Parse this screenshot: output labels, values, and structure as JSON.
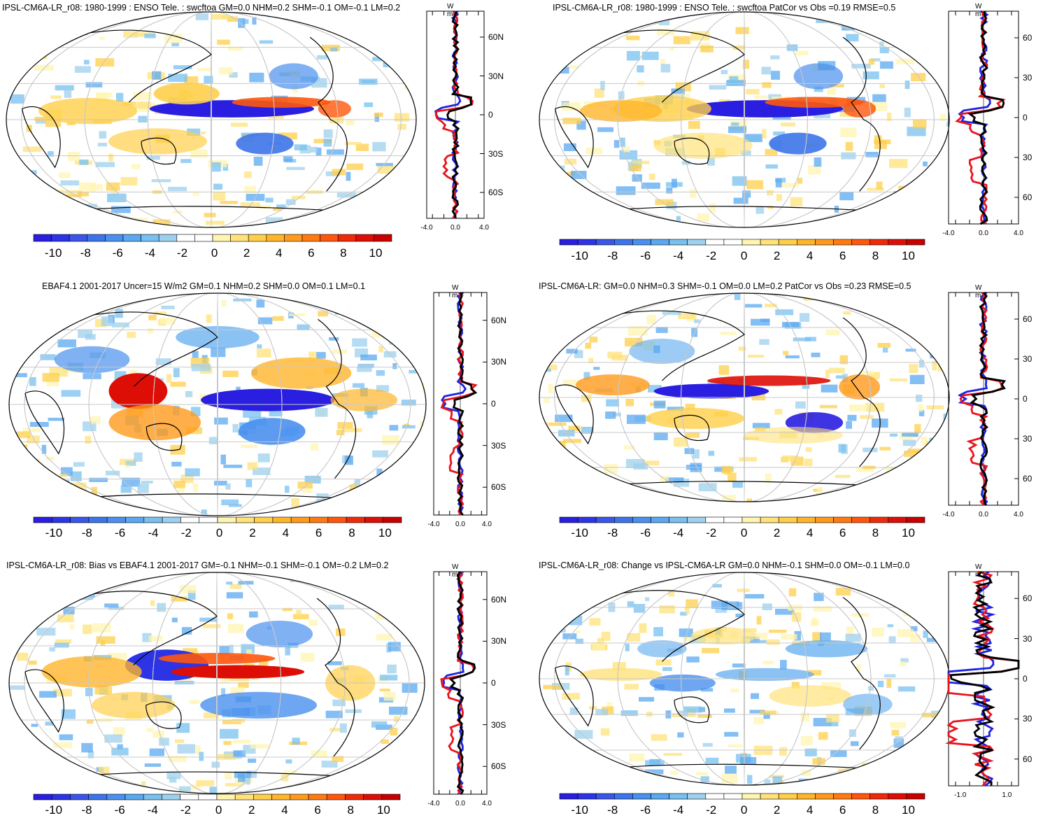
{
  "panels": [
    {
      "title": "IPSL-CM6A-LR_r08: 1980-1999 : ENSO Tele. : swcftoa GM=0.0 NHM=0.2 SHM=-0.1 OM=-0.1 LM=0.2",
      "lat_labels": [
        "60N",
        "30N",
        "0",
        "30S",
        "60S"
      ],
      "x_labels": [
        "-4.0",
        "0.0",
        "4.0"
      ],
      "zonal_xrange": [
        -4,
        4
      ]
    },
    {
      "title": "IPSL-CM6A-LR_r08: 1980-1999 : ENSO Tele. : swcftoa PatCor vs Obs =0.19 RMSE=0.5",
      "lat_labels": [
        "60",
        "30",
        "0",
        "30",
        "60"
      ],
      "x_labels": [
        "-4.0",
        "0.0",
        "4.0"
      ],
      "zonal_xrange": [
        -4,
        4
      ]
    },
    {
      "title": "EBAF4.1 2001-2017 Uncer=15 W/m2 GM=0.1 NHM=0.2 SHM=0.0 OM=0.1 LM=0.1",
      "lat_labels": [
        "60N",
        "30N",
        "0",
        "30S",
        "60S"
      ],
      "x_labels": [
        "-4.0",
        "0.0",
        "4.0"
      ],
      "zonal_xrange": [
        -4,
        4
      ]
    },
    {
      "title": "IPSL-CM6A-LR: GM=0.0 NHM=0.3 SHM=-0.1 OM=0.0 LM=0.2 PatCor vs Obs =0.23 RMSE=0.5",
      "lat_labels": [
        "60",
        "30",
        "0",
        "30",
        "60"
      ],
      "x_labels": [
        "-4.0",
        "0.0",
        "4.0"
      ],
      "zonal_xrange": [
        -4,
        4
      ]
    },
    {
      "title": "IPSL-CM6A-LR_r08: Bias vs EBAF4.1 2001-2017 GM=-0.1 NHM=-0.1 SHM=-0.1 OM=-0.2 LM=0.2",
      "lat_labels": [
        "60N",
        "30N",
        "0",
        "30S",
        "60S"
      ],
      "x_labels": [
        "-4.0",
        "0.0",
        "4.0"
      ],
      "zonal_xrange": [
        -4,
        4
      ]
    },
    {
      "title": "IPSL-CM6A-LR_r08: Change vs IPSL-CM6A-LR GM=0.0 NHM=-0.1 SHM=0.0 OM=-0.1 LM=0.0",
      "lat_labels": [
        "60",
        "30",
        "0",
        "30",
        "60"
      ],
      "x_labels": [
        "-1.0",
        "1.0"
      ],
      "zonal_xrange": [
        -1.5,
        1.5
      ]
    }
  ],
  "colorbar": {
    "ticks": [
      "-10",
      "-8",
      "-6",
      "-4",
      "-2",
      "0",
      "2",
      "4",
      "6",
      "8",
      "10"
    ],
    "colors": [
      "#2a1ee0",
      "#2c34e6",
      "#3a55e8",
      "#3d74ea",
      "#4a90ee",
      "#5aa8f0",
      "#78c0ef",
      "#9dd0ee",
      "#ffffff",
      "#ffffff",
      "#fff4b0",
      "#ffe27a",
      "#ffcf4a",
      "#ffb52a",
      "#ff9a1c",
      "#ff7a12",
      "#ff560c",
      "#ee2a08",
      "#dd0e06",
      "#c70000"
    ]
  },
  "unit": "W m⁻²",
  "series_colors": {
    "model": "#e8141e",
    "obs": "#1c23e0",
    "mean": "#000000"
  }
}
